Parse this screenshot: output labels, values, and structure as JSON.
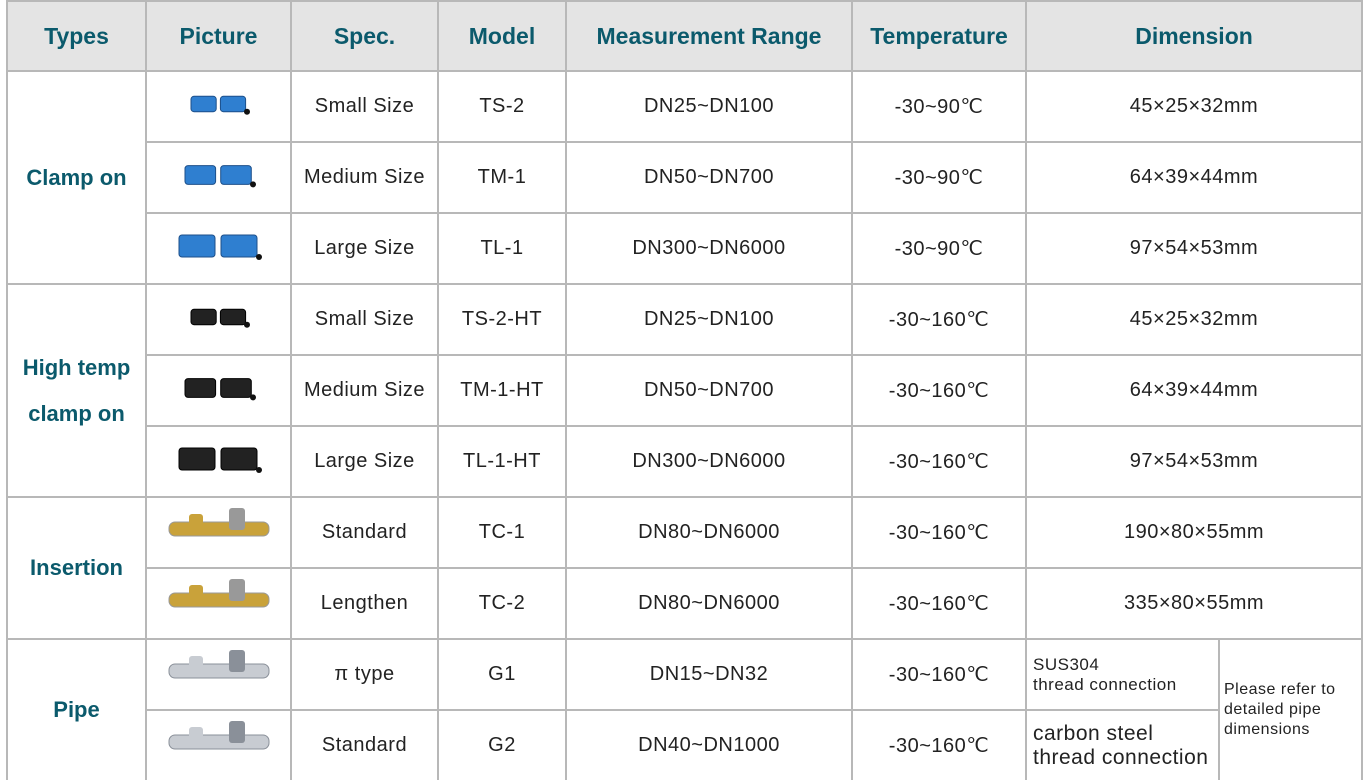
{
  "table": {
    "headers": [
      "Types",
      "Picture",
      "Spec.",
      "Model",
      "Measurement Range",
      "Temperature",
      "Dimension"
    ],
    "groups": [
      {
        "type": "Clamp on",
        "rows": [
          [
            "Small  Size",
            "TS-2",
            "DN25~DN100",
            "-30~90℃",
            "45×25×32mm"
          ],
          [
            "Medium Size",
            "TM-1",
            "DN50~DN700",
            "-30~90℃",
            "64×39×44mm"
          ],
          [
            "Large Size",
            "TL-1",
            "DN300~DN6000",
            "-30~90℃",
            "97×54×53mm"
          ]
        ]
      },
      {
        "type": "High temp\nclamp  on",
        "rows": [
          [
            "Small Size",
            "TS-2-HT",
            "DN25~DN100",
            "-30~160℃",
            "45×25×32mm"
          ],
          [
            "Medium Size",
            "TM-1-HT",
            "DN50~DN700",
            "-30~160℃",
            "64×39×44mm"
          ],
          [
            "Large Size",
            "TL-1-HT",
            "DN300~DN6000",
            "-30~160℃",
            "97×54×53mm"
          ]
        ]
      },
      {
        "type": "Insertion",
        "rows": [
          [
            "Standard",
            "TC-1",
            "DN80~DN6000",
            "-30~160℃",
            "190×80×55mm"
          ],
          [
            "Lengthen",
            "TC-2",
            "DN80~DN6000",
            "-30~160℃",
            "335×80×55mm"
          ]
        ]
      },
      {
        "type": "Pipe",
        "rows": [
          [
            "π type",
            "G1",
            "DN15~DN32",
            "-30~160℃",
            "SUS304\nthread connection"
          ],
          [
            "Standard",
            "G2",
            "DN40~DN1000",
            "-30~160℃",
            "carbon steel\nthread connection"
          ]
        ],
        "note": "Please refer to\ndetailed pipe\ndimensions"
      }
    ]
  }
}
